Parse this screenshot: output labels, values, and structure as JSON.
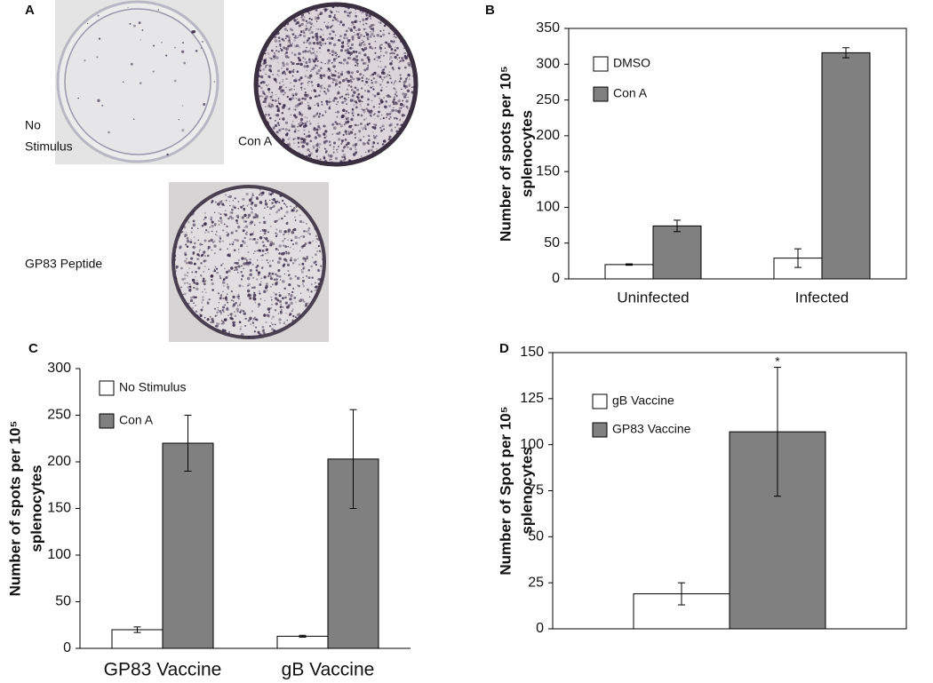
{
  "panel_a": {
    "panel": "A",
    "images": [
      {
        "label": [
          "No",
          "Stimulus"
        ]
      },
      {
        "label": [
          "Con A"
        ]
      },
      {
        "label": [
          "GP83 Peptide"
        ]
      }
    ]
  },
  "chart_data": [
    {
      "type": "bar",
      "panel": "B",
      "ylabel": [
        "Number of spots per 10⁵",
        "splenocytes"
      ],
      "categories": [
        "Uninfected",
        "Infected"
      ],
      "series": [
        {
          "name": "DMSO",
          "color": "#ffffff",
          "values": [
            20,
            29
          ],
          "errors": [
            1,
            13
          ]
        },
        {
          "name": "Con A",
          "color": "#808080",
          "values": [
            74,
            316
          ],
          "errors": [
            8,
            7
          ]
        }
      ],
      "ylim": [
        0,
        350
      ],
      "yticks": [
        0,
        50,
        100,
        150,
        200,
        250,
        300,
        350
      ],
      "legend": "upper left"
    },
    {
      "type": "bar",
      "panel": "C",
      "ylabel": [
        "Number of spots per 10⁵",
        "splenocytes"
      ],
      "categories": [
        "GP83 Vaccine",
        "gB Vaccine"
      ],
      "series": [
        {
          "name": "No Stimulus",
          "color": "#ffffff",
          "values": [
            20,
            13
          ],
          "errors": [
            3,
            1
          ]
        },
        {
          "name": "Con A",
          "color": "#808080",
          "values": [
            220,
            203
          ],
          "errors": [
            30,
            53
          ]
        }
      ],
      "ylim": [
        0,
        300
      ],
      "yticks": [
        0,
        50,
        100,
        150,
        200,
        250,
        300
      ],
      "legend": "upper left"
    },
    {
      "type": "bar",
      "panel": "D",
      "ylabel": [
        "Number of Spot per 10⁵",
        "splenocytes"
      ],
      "categories": [
        null
      ],
      "series": [
        {
          "name": "gB Vaccine",
          "color": "#ffffff",
          "values": [
            19
          ],
          "errors": [
            6
          ]
        },
        {
          "name": "GP83 Vaccine",
          "color": "#808080",
          "values": [
            107
          ],
          "errors": [
            35
          ]
        }
      ],
      "annotation": "*",
      "ylim": [
        0,
        150
      ],
      "yticks": [
        0,
        25,
        50,
        75,
        100,
        125,
        150
      ],
      "legend": "upper left"
    }
  ]
}
